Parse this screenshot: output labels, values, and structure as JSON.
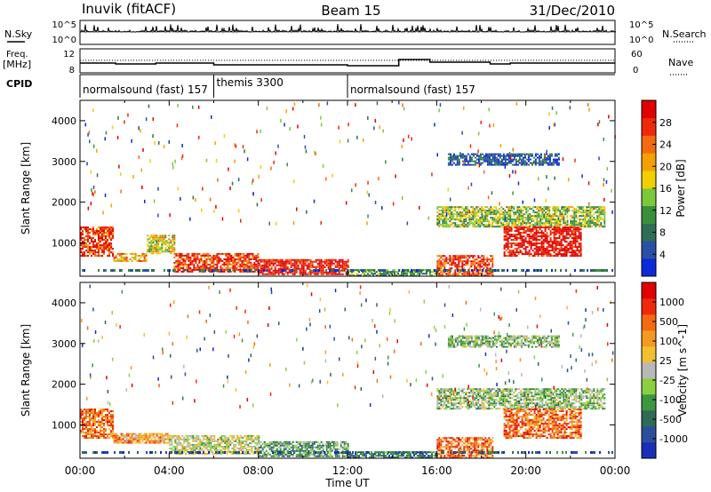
{
  "header": {
    "station": "Inuvik (fitACF)",
    "beam": "Beam 15",
    "date": "31/Dec/2010"
  },
  "summary_panel": {
    "nsky_label": "N.Sky",
    "nsky_tick_top": "10^5",
    "nsky_tick_bottom": "10^0",
    "nsearch_label": "N.Search",
    "nsearch_tick_top": "10^5",
    "nsearch_tick_bottom": "10^0",
    "freq_label_1": "Freq.",
    "freq_label_2": "[MHz]",
    "freq_tick_top": "12",
    "freq_tick_bottom": "8",
    "nave_label": "Nave",
    "nave_tick_top": "60",
    "nave_tick_bottom": "0",
    "cpid_label": "CPID"
  },
  "cpid_segments": [
    {
      "label": "normalsound (fast) 157",
      "start_h": 0,
      "end_h": 6
    },
    {
      "label": "themis 3300",
      "start_h": 6,
      "end_h": 12
    },
    {
      "label": "normalsound (fast) 157",
      "start_h": 12,
      "end_h": 24
    }
  ],
  "chart_data": [
    {
      "type": "heatmap",
      "quantity": "Power",
      "ylabel": "Slant Range [km]",
      "ylim": [
        180,
        4500
      ],
      "yticks": [
        "1000",
        "2000",
        "3000",
        "4000"
      ],
      "xlim_hours": [
        0,
        24
      ],
      "colorbar_label": "Power [dB]",
      "colorbar_ticks": [
        "4",
        "8",
        "12",
        "16",
        "20",
        "24",
        "28"
      ],
      "colors": [
        "#0b2ad9",
        "#2b4fa6",
        "#2f6e55",
        "#3c8f3a",
        "#7bc83a",
        "#f0d000",
        "#f5a000",
        "#f36a10",
        "#ee2a0a",
        "#e00000"
      ],
      "echo_regions": [
        {
          "t0": 0.0,
          "t1": 1.5,
          "r0": 700,
          "r1": 1400,
          "level": 8
        },
        {
          "t0": 1.5,
          "t1": 3.0,
          "r0": 550,
          "r1": 750,
          "level": 6
        },
        {
          "t0": 3.0,
          "t1": 4.2,
          "r0": 750,
          "r1": 1200,
          "level": 5
        },
        {
          "t0": 4.2,
          "t1": 8.0,
          "r0": 300,
          "r1": 750,
          "level": 8
        },
        {
          "t0": 8.0,
          "t1": 12.0,
          "r0": 220,
          "r1": 600,
          "level": 9
        },
        {
          "t0": 12.0,
          "t1": 16.0,
          "r0": 200,
          "r1": 350,
          "level": 3
        },
        {
          "t0": 16.0,
          "t1": 18.5,
          "r0": 200,
          "r1": 700,
          "level": 8
        },
        {
          "t0": 16.0,
          "t1": 23.5,
          "r0": 1400,
          "r1": 1900,
          "level": 4
        },
        {
          "t0": 19.0,
          "t1": 22.5,
          "r0": 700,
          "r1": 1400,
          "level": 9
        },
        {
          "t0": 16.5,
          "t1": 21.5,
          "r0": 2900,
          "r1": 3200,
          "level": 1
        }
      ]
    },
    {
      "type": "heatmap",
      "quantity": "Velocity",
      "ylabel": "Slant Range [km]",
      "ylim": [
        180,
        4500
      ],
      "yticks": [
        "1000",
        "2000",
        "3000",
        "4000"
      ],
      "xlim_hours": [
        0,
        24
      ],
      "xticks": [
        "00:00",
        "04:00",
        "08:00",
        "12:00",
        "16:00",
        "20:00",
        "00:00"
      ],
      "xlabel": "Time UT",
      "colorbar_label": "Velocity [m s^-1]",
      "colorbar_ticks": [
        "1000",
        "500",
        "100",
        "25",
        "-25",
        "-100",
        "-500",
        "-1000"
      ],
      "colors": [
        "#1a2fb8",
        "#2b4f9a",
        "#2e6a55",
        "#3d9640",
        "#8ad040",
        "#b8b8b8",
        "#f0c030",
        "#f59a20",
        "#f36a10",
        "#ee2a0a",
        "#e00000"
      ],
      "echo_regions": [
        {
          "t0": 0.0,
          "t1": 1.5,
          "r0": 700,
          "r1": 1400,
          "level": 8
        },
        {
          "t0": 1.5,
          "t1": 4.0,
          "r0": 550,
          "r1": 800,
          "level": 7
        },
        {
          "t0": 4.0,
          "t1": 8.0,
          "r0": 300,
          "r1": 750,
          "level": 5
        },
        {
          "t0": 8.0,
          "t1": 12.0,
          "r0": 220,
          "r1": 600,
          "level": 3
        },
        {
          "t0": 12.0,
          "t1": 16.0,
          "r0": 200,
          "r1": 350,
          "level": 2
        },
        {
          "t0": 16.0,
          "t1": 18.5,
          "r0": 200,
          "r1": 700,
          "level": 8
        },
        {
          "t0": 16.0,
          "t1": 23.5,
          "r0": 1400,
          "r1": 1900,
          "level": 4
        },
        {
          "t0": 19.0,
          "t1": 22.5,
          "r0": 700,
          "r1": 1400,
          "level": 8
        },
        {
          "t0": 16.5,
          "t1": 21.5,
          "r0": 2900,
          "r1": 3200,
          "level": 4
        }
      ]
    }
  ]
}
